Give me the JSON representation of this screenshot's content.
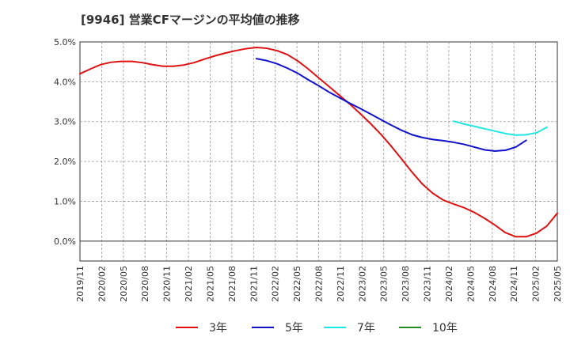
{
  "chart_data": {
    "type": "line",
    "title": "[9946]  営業CFマージンの平均値の推移",
    "xlabel": "",
    "ylabel": "",
    "x_ticks": [
      "2019/11",
      "2020/02",
      "2020/05",
      "2020/08",
      "2020/11",
      "2021/02",
      "2021/05",
      "2021/08",
      "2021/11",
      "2022/02",
      "2022/05",
      "2022/08",
      "2022/11",
      "2023/02",
      "2023/05",
      "2023/08",
      "2023/11",
      "2024/02",
      "2024/05",
      "2024/08",
      "2024/11",
      "2025/02",
      "2025/05"
    ],
    "y_ticks": [
      "0.0%",
      "1.0%",
      "2.0%",
      "3.0%",
      "4.0%",
      "5.0%"
    ],
    "ylim": [
      -0.5,
      5.0
    ],
    "grid": true,
    "legend_position": "bottom",
    "series": [
      {
        "name": "3年",
        "color": "#dd1111",
        "values": [
          4.2,
          4.32,
          4.43,
          4.49,
          4.51,
          4.51,
          4.48,
          4.43,
          4.39,
          4.39,
          4.42,
          4.48,
          4.57,
          4.65,
          4.72,
          4.78,
          4.83,
          4.86,
          4.84,
          4.78,
          4.68,
          4.52,
          4.32,
          4.1,
          3.88,
          3.66,
          3.44,
          3.2,
          2.95,
          2.68,
          2.38,
          2.06,
          1.73,
          1.43,
          1.2,
          1.03,
          0.93,
          0.84,
          0.72,
          0.57,
          0.4,
          0.21,
          0.11,
          0.11,
          0.2,
          0.38,
          0.7
        ]
      },
      {
        "name": "5年",
        "color": "#1111cc",
        "values": [
          null,
          null,
          null,
          null,
          null,
          null,
          null,
          null,
          null,
          null,
          null,
          null,
          null,
          null,
          null,
          null,
          null,
          4.58,
          4.53,
          4.45,
          4.34,
          4.21,
          4.05,
          3.9,
          3.74,
          3.6,
          3.46,
          3.33,
          3.19,
          3.05,
          2.91,
          2.78,
          2.67,
          2.6,
          2.55,
          2.52,
          2.48,
          2.43,
          2.36,
          2.29,
          2.26,
          2.28,
          2.36,
          2.53
        ]
      },
      {
        "name": "7年",
        "color": "#22e6e6",
        "values": [
          null,
          null,
          null,
          null,
          null,
          null,
          null,
          null,
          null,
          null,
          null,
          null,
          null,
          null,
          null,
          null,
          null,
          null,
          null,
          null,
          null,
          null,
          null,
          null,
          null,
          null,
          null,
          null,
          null,
          null,
          null,
          null,
          null,
          null,
          null,
          null,
          3.01,
          2.94,
          2.88,
          2.82,
          2.76,
          2.7,
          2.66,
          2.67,
          2.72,
          2.86
        ]
      },
      {
        "name": "10年",
        "color": "#228b22",
        "values": []
      }
    ]
  }
}
